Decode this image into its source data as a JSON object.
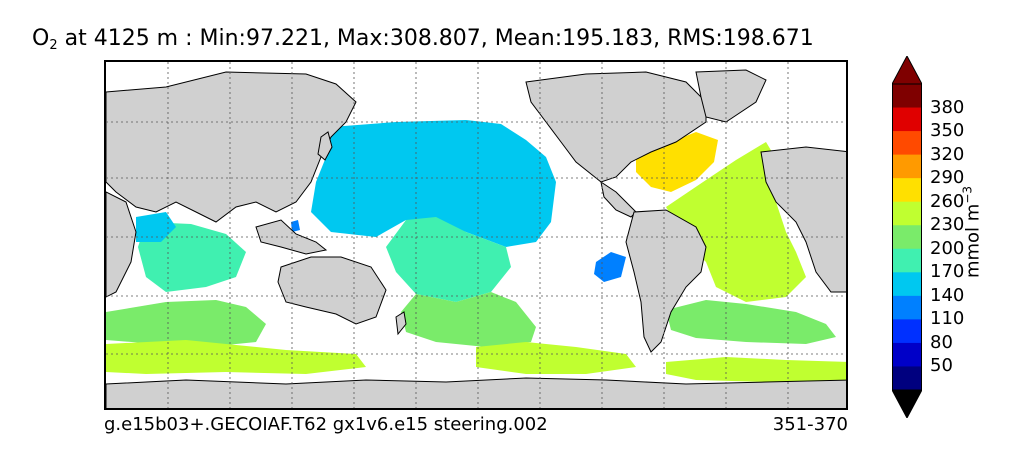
{
  "title": {
    "species": "O",
    "subscript": "2",
    "rest": " at 4125 m : Min:97.221, Max:308.807, Mean:195.183, RMS:198.671"
  },
  "footer": {
    "case": "g.e15b03+.GECOIAF.T62 gx1v6.e15 steering.002",
    "years": "351-370"
  },
  "colorbar": {
    "unit_main": "mmol m",
    "unit_exp": "−3",
    "labels": [
      "380",
      "350",
      "320",
      "290",
      "260",
      "230",
      "200",
      "170",
      "140",
      "110",
      "80",
      "50"
    ],
    "colors": [
      "#7f0000",
      "#e00000",
      "#ff4a00",
      "#ff9a00",
      "#ffe000",
      "#c0ff30",
      "#7aeb6a",
      "#40f0b0",
      "#00c8f0",
      "#0080ff",
      "#0030ff",
      "#0000c8",
      "#00007f"
    ],
    "top_cap": "#7f0000",
    "bottom_cap": "#000000"
  },
  "map_colors": {
    "land": "#d0d0d0",
    "ocean_missing": "#ffffff",
    "c140": "#00c8f0",
    "c170": "#40f0b0",
    "c200": "#7aeb6a",
    "c230": "#c0ff30",
    "c260": "#ffe000",
    "c110": "#0080ff",
    "grid": "#555555"
  }
}
